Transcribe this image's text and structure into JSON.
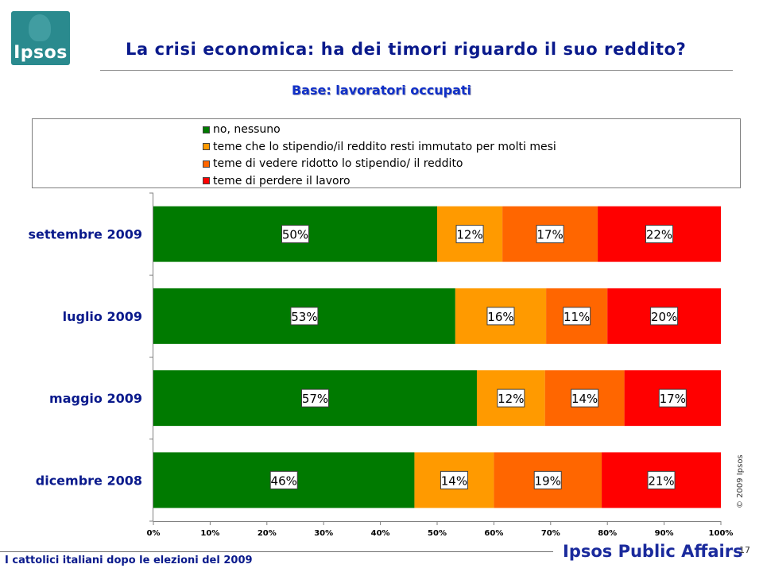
{
  "header": {
    "logo_text": "Ipsos",
    "title": "La crisi economica: ha dei timori riguardo il suo reddito?",
    "subtitle": "Base: lavoratori occupati"
  },
  "chart_data": {
    "type": "bar",
    "orientation": "horizontal",
    "stacked": true,
    "categories": [
      "settembre 2009",
      "luglio 2009",
      "maggio 2009",
      "dicembre 2008"
    ],
    "series": [
      {
        "name": "no, nessuno",
        "color": "#007a00",
        "values": [
          50,
          53,
          57,
          46
        ]
      },
      {
        "name": "teme che lo stipendio/il reddito resti immutato per molti mesi",
        "color": "#ff9a00",
        "values": [
          12,
          16,
          12,
          14
        ]
      },
      {
        "name": "teme di vedere ridotto lo stipendio/ il reddito",
        "color": "#ff6600",
        "values": [
          17,
          11,
          14,
          19
        ]
      },
      {
        "name": "teme di perdere il lavoro",
        "color": "#ff0000",
        "values": [
          22,
          20,
          17,
          21
        ]
      }
    ],
    "display_widths": [
      [
        50,
        11.5,
        16.8,
        21.7
      ],
      [
        53.2,
        16,
        10.8,
        20
      ],
      [
        57,
        12,
        14,
        17
      ],
      [
        46,
        14,
        19,
        21
      ]
    ],
    "data_labels": [
      [
        "50%",
        "12%",
        "17%",
        "22%"
      ],
      [
        "53%",
        "16%",
        "11%",
        "20%"
      ],
      [
        "57%",
        "12%",
        "14%",
        "17%"
      ],
      [
        "46%",
        "14%",
        "19%",
        "21%"
      ]
    ],
    "xlim": [
      0,
      100
    ],
    "x_ticks": [
      "0%",
      "10%",
      "20%",
      "30%",
      "40%",
      "50%",
      "60%",
      "70%",
      "80%",
      "90%",
      "100%"
    ],
    "legend_position": "top",
    "grid": false
  },
  "side": {
    "copyright": "© 2009 Ipsos"
  },
  "footer": {
    "text": "I cattolici italiani dopo le elezioni del 2009",
    "brand": "Ipsos Public Affairs",
    "page": "17"
  }
}
